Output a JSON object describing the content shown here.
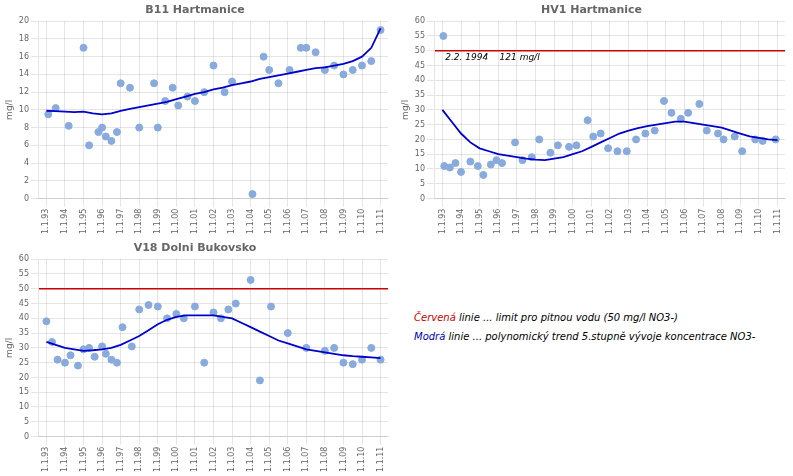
{
  "chart_data": [
    {
      "type": "scatter",
      "title": "B11 Hartmanice",
      "ylabel": "mg/l",
      "grid": true,
      "xlim": [
        1992.6,
        2011.4
      ],
      "xticks": [
        {
          "value": 1993,
          "label": "1.1.93"
        },
        {
          "value": 1994,
          "label": "1.1.94"
        },
        {
          "value": 1995,
          "label": "1.1.95"
        },
        {
          "value": 1996,
          "label": "1.1.96"
        },
        {
          "value": 1997,
          "label": "1.1.97"
        },
        {
          "value": 1998,
          "label": "1.1.98"
        },
        {
          "value": 1999,
          "label": "1.1.99"
        },
        {
          "value": 2000,
          "label": "1.1.00"
        },
        {
          "value": 2001,
          "label": "1.1.01"
        },
        {
          "value": 2002,
          "label": "1.1.02"
        },
        {
          "value": 2003,
          "label": "1.1.03"
        },
        {
          "value": 2004,
          "label": "1.1.04"
        },
        {
          "value": 2005,
          "label": "1.1.05"
        },
        {
          "value": 2006,
          "label": "1.1.06"
        },
        {
          "value": 2007,
          "label": "1.1.07"
        },
        {
          "value": 2008,
          "label": "1.1.08"
        },
        {
          "value": 2009,
          "label": "1.1.09"
        },
        {
          "value": 2010,
          "label": "1.1.10"
        },
        {
          "value": 2011,
          "label": "1.1.11"
        }
      ],
      "ylim": [
        0,
        20
      ],
      "yticks": [
        0,
        2,
        4,
        6,
        8,
        10,
        12,
        14,
        16,
        18,
        20
      ],
      "series": [
        {
          "type": "scatter",
          "color": "#88aadd",
          "x": [
            1993.1,
            1993.5,
            1994.2,
            1995.0,
            1995.3,
            1995.8,
            1996.0,
            1996.2,
            1996.5,
            1996.8,
            1997.0,
            1997.5,
            1998.0,
            1998.8,
            1999.0,
            1999.4,
            1999.8,
            2000.1,
            2000.6,
            2001.0,
            2001.5,
            2002.0,
            2002.6,
            2003.0,
            2004.1,
            2004.7,
            2005.0,
            2005.5,
            2006.1,
            2006.7,
            2007.0,
            2007.5,
            2008.0,
            2008.5,
            2009.0,
            2009.5,
            2010.0,
            2010.5,
            2011.0
          ],
          "values": [
            9.5,
            10.2,
            8.2,
            17.0,
            6.0,
            7.5,
            8.0,
            7.0,
            6.5,
            7.5,
            13.0,
            12.5,
            8.0,
            13.0,
            8.0,
            11.0,
            12.5,
            10.5,
            11.5,
            11.0,
            12.0,
            15.0,
            12.0,
            13.2,
            0.5,
            16.0,
            14.5,
            13.0,
            14.5,
            17.0,
            17.0,
            16.5,
            14.5,
            15.0,
            14.0,
            14.5,
            15.0,
            15.5,
            19.0
          ]
        },
        {
          "type": "line",
          "color": "#0000cc",
          "x": [
            1993.0,
            1993.5,
            1994.0,
            1994.5,
            1995.0,
            1995.5,
            1996.0,
            1996.5,
            1997.0,
            1997.5,
            1998.0,
            1998.5,
            1999.0,
            1999.5,
            2000.0,
            2000.5,
            2001.0,
            2001.5,
            2002.0,
            2002.5,
            2003.0,
            2003.5,
            2004.0,
            2004.5,
            2005.0,
            2005.5,
            2006.0,
            2006.5,
            2007.0,
            2007.5,
            2008.0,
            2008.5,
            2009.0,
            2009.5,
            2010.0,
            2010.5,
            2011.0
          ],
          "values": [
            9.9,
            9.85,
            9.8,
            9.75,
            9.8,
            9.6,
            9.5,
            9.6,
            9.9,
            10.1,
            10.3,
            10.5,
            10.7,
            10.9,
            11.2,
            11.5,
            11.8,
            12.0,
            12.3,
            12.5,
            12.8,
            13.0,
            13.2,
            13.5,
            13.7,
            13.9,
            14.1,
            14.3,
            14.5,
            14.7,
            14.8,
            15.0,
            15.2,
            15.5,
            16.0,
            17.0,
            19.2
          ]
        }
      ]
    },
    {
      "type": "scatter",
      "title": "HV1 Hartmanice",
      "ylabel": "mg/l",
      "grid": true,
      "xlim": [
        1992.6,
        2011.4
      ],
      "xticks": [
        {
          "value": 1993,
          "label": "1.1.93"
        },
        {
          "value": 1994,
          "label": "1.1.94"
        },
        {
          "value": 1995,
          "label": "1.1.95"
        },
        {
          "value": 1996,
          "label": "1.1.96"
        },
        {
          "value": 1997,
          "label": "1.1.97"
        },
        {
          "value": 1998,
          "label": "1.1.98"
        },
        {
          "value": 1999,
          "label": "1.1.99"
        },
        {
          "value": 2000,
          "label": "1.1.00"
        },
        {
          "value": 2001,
          "label": "1.1.01"
        },
        {
          "value": 2002,
          "label": "1.1.02"
        },
        {
          "value": 2003,
          "label": "1.1.03"
        },
        {
          "value": 2004,
          "label": "1.1.04"
        },
        {
          "value": 2005,
          "label": "1.1.05"
        },
        {
          "value": 2006,
          "label": "1.1.06"
        },
        {
          "value": 2007,
          "label": "1.1.07"
        },
        {
          "value": 2008,
          "label": "1.1.08"
        },
        {
          "value": 2009,
          "label": "1.1.09"
        },
        {
          "value": 2010,
          "label": "1.1.10"
        },
        {
          "value": 2011,
          "label": "1.1.11"
        }
      ],
      "ylim": [
        0,
        60
      ],
      "yticks": [
        0,
        5,
        10,
        15,
        20,
        25,
        30,
        35,
        40,
        45,
        50,
        55,
        60
      ],
      "hlines": [
        {
          "value": 50,
          "color": "#cc0000"
        }
      ],
      "annotations": [
        {
          "text": "2.2. 1994    121 mg/l",
          "x": 1993.15,
          "y": 46
        }
      ],
      "series": [
        {
          "type": "scatter",
          "color": "#88aadd",
          "x": [
            1993.1,
            1993.4,
            1993.7,
            1994.0,
            1994.5,
            1994.9,
            1995.2,
            1995.6,
            1995.9,
            1996.2,
            1996.9,
            1997.3,
            1997.8,
            1998.2,
            1998.8,
            1999.2,
            1999.8,
            2000.2,
            2000.8,
            2001.1,
            2001.5,
            2001.9,
            2002.4,
            2002.9,
            2003.4,
            2003.9,
            2004.4,
            2004.9,
            2005.3,
            2005.8,
            2006.2,
            2006.8,
            2007.2,
            2007.8,
            2008.1,
            2008.7,
            2009.1,
            2009.8,
            2010.2,
            2010.9
          ],
          "values": [
            11.0,
            10.5,
            12.0,
            9.0,
            12.5,
            11.0,
            8.0,
            11.5,
            13.0,
            12.0,
            19.0,
            13.0,
            14.0,
            20.0,
            15.5,
            18.0,
            17.5,
            18.0,
            26.5,
            21.0,
            22.0,
            17.0,
            16.0,
            16.0,
            20.0,
            22.0,
            23.0,
            33.0,
            29.0,
            27.0,
            29.0,
            32.0,
            23.0,
            22.0,
            20.0,
            21.0,
            16.0,
            20.0,
            19.5,
            20.0
          ]
        },
        {
          "type": "scatter",
          "color": "#88aadd",
          "x": [
            1993.05
          ],
          "values": [
            55.0
          ]
        },
        {
          "type": "line",
          "color": "#0000cc",
          "x": [
            1993.0,
            1993.5,
            1994.0,
            1994.5,
            1995.0,
            1995.5,
            1996.0,
            1996.5,
            1997.0,
            1997.5,
            1998.0,
            1998.5,
            1999.0,
            1999.5,
            2000.0,
            2000.5,
            2001.0,
            2001.5,
            2002.0,
            2002.5,
            2003.0,
            2003.5,
            2004.0,
            2004.5,
            2005.0,
            2005.5,
            2006.0,
            2006.5,
            2007.0,
            2007.5,
            2008.0,
            2008.5,
            2009.0,
            2009.5,
            2010.0,
            2010.5,
            2011.0
          ],
          "values": [
            30.0,
            26.0,
            22.0,
            19.0,
            17.0,
            16.0,
            15.0,
            14.5,
            14.0,
            13.5,
            13.2,
            13.0,
            13.5,
            14.0,
            15.0,
            16.0,
            17.5,
            19.0,
            20.5,
            22.0,
            23.0,
            23.8,
            24.5,
            25.0,
            25.5,
            26.0,
            26.0,
            25.5,
            25.0,
            24.5,
            24.0,
            23.0,
            22.0,
            21.0,
            20.5,
            20.0,
            19.8
          ]
        }
      ]
    },
    {
      "type": "scatter",
      "title": "V18 Dolni Bukovsko",
      "ylabel": "mg/l",
      "grid": true,
      "xlim": [
        1992.6,
        2011.4
      ],
      "xticks": [
        {
          "value": 1993,
          "label": "1.1.93"
        },
        {
          "value": 1994,
          "label": "1.1.94"
        },
        {
          "value": 1995,
          "label": "1.1.95"
        },
        {
          "value": 1996,
          "label": "1.1.96"
        },
        {
          "value": 1997,
          "label": "1.1.97"
        },
        {
          "value": 1998,
          "label": "1.1.98"
        },
        {
          "value": 1999,
          "label": "1.1.99"
        },
        {
          "value": 2000,
          "label": "1.1.00"
        },
        {
          "value": 2001,
          "label": "1.1.01"
        },
        {
          "value": 2002,
          "label": "1.1.02"
        },
        {
          "value": 2003,
          "label": "1.1.03"
        },
        {
          "value": 2004,
          "label": "1.1.04"
        },
        {
          "value": 2005,
          "label": "1.1.05"
        },
        {
          "value": 2006,
          "label": "1.1.06"
        },
        {
          "value": 2007,
          "label": "1.1.07"
        },
        {
          "value": 2008,
          "label": "1.1.08"
        },
        {
          "value": 2009,
          "label": "1.1.09"
        },
        {
          "value": 2010,
          "label": "1.1.10"
        },
        {
          "value": 2011,
          "label": "1.1.11"
        }
      ],
      "ylim": [
        0,
        60
      ],
      "yticks": [
        0,
        5,
        10,
        15,
        20,
        25,
        30,
        35,
        40,
        45,
        50,
        55,
        60
      ],
      "hlines": [
        {
          "value": 50,
          "color": "#cc0000"
        }
      ],
      "series": [
        {
          "type": "scatter",
          "color": "#88aadd",
          "x": [
            1993.0,
            1993.3,
            1993.6,
            1994.0,
            1994.3,
            1994.7,
            1995.0,
            1995.3,
            1995.6,
            1996.0,
            1996.2,
            1996.5,
            1996.8,
            1997.1,
            1997.6,
            1998.0,
            1998.5,
            1999.0,
            1999.5,
            2000.0,
            2000.4,
            2001.0,
            2001.5,
            2002.0,
            2002.4,
            2002.8,
            2003.2,
            2004.0,
            2004.5,
            2005.1,
            2006.0,
            2007.0,
            2008.0,
            2008.5,
            2009.0,
            2009.5,
            2010.0,
            2010.5,
            2011.0
          ],
          "values": [
            39.0,
            32.0,
            26.0,
            25.0,
            27.5,
            24.0,
            29.5,
            30.0,
            27.0,
            30.5,
            28.0,
            26.0,
            25.0,
            37.0,
            30.5,
            43.0,
            44.5,
            44.0,
            40.0,
            41.5,
            40.0,
            44.0,
            25.0,
            42.0,
            40.0,
            43.0,
            45.0,
            53.0,
            19.0,
            44.0,
            35.0,
            30.0,
            29.0,
            30.0,
            25.0,
            24.5,
            26.0,
            30.0,
            26.0
          ]
        },
        {
          "type": "line",
          "color": "#0000cc",
          "x": [
            1993.0,
            1993.5,
            1994.0,
            1994.5,
            1995.0,
            1995.5,
            1996.0,
            1996.5,
            1997.0,
            1997.5,
            1998.0,
            1998.5,
            1999.0,
            1999.5,
            2000.0,
            2000.5,
            2001.0,
            2001.5,
            2002.0,
            2002.5,
            2003.0,
            2003.5,
            2004.0,
            2004.5,
            2005.0,
            2005.5,
            2006.0,
            2006.5,
            2007.0,
            2007.5,
            2008.0,
            2008.5,
            2009.0,
            2009.5,
            2010.0,
            2010.5,
            2011.0
          ],
          "values": [
            32.0,
            31.0,
            30.0,
            29.5,
            29.0,
            29.2,
            29.5,
            30.0,
            31.0,
            32.5,
            34.0,
            36.0,
            38.0,
            39.5,
            40.5,
            41.0,
            41.0,
            41.0,
            41.0,
            40.5,
            40.0,
            38.5,
            37.0,
            35.5,
            34.0,
            32.5,
            31.5,
            30.5,
            29.5,
            29.0,
            28.5,
            28.0,
            27.5,
            27.2,
            27.0,
            26.8,
            26.5
          ]
        }
      ]
    }
  ],
  "annotations": [
    {
      "parts": [
        {
          "text": "Červená",
          "color": "#cc0000"
        },
        {
          "text": " linie ... limit pro pitnou vodu (50 mg/l NO3-)"
        }
      ]
    },
    {
      "parts": [
        {
          "text": "Modrá",
          "color": "#0000bb"
        },
        {
          "text": " linie ... polynomický trend 5.stupně vývoje koncentrace NO3-"
        }
      ]
    }
  ]
}
